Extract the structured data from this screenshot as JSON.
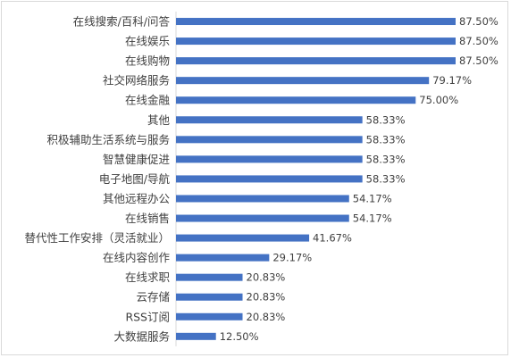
{
  "chart_data": {
    "type": "bar",
    "orientation": "horizontal",
    "categories": [
      "在线搜索/百科/问答",
      "在线娱乐",
      "在线购物",
      "社交网络服务",
      "在线金融",
      "其他",
      "积极辅助生活系统与服务",
      "智慧健康促进",
      "电子地图/导航",
      "其他远程办公",
      "在线销售",
      "替代性工作安排（灵活就业）",
      "在线内容创作",
      "在线求职",
      "云存储",
      "RSS订阅",
      "大数据服务"
    ],
    "values": [
      87.5,
      87.5,
      87.5,
      79.17,
      75.0,
      58.33,
      58.33,
      58.33,
      58.33,
      54.17,
      54.17,
      41.67,
      29.17,
      20.83,
      20.83,
      20.83,
      12.5
    ],
    "value_labels": [
      "87.50%",
      "87.50%",
      "87.50%",
      "79.17%",
      "75.00%",
      "58.33%",
      "58.33%",
      "58.33%",
      "58.33%",
      "54.17%",
      "54.17%",
      "41.67%",
      "29.17%",
      "20.83%",
      "20.83%",
      "20.83%",
      "12.50%"
    ],
    "bar_color": "#4472C4",
    "axis_color": "#d9d9d9",
    "xlim": [
      0,
      100
    ],
    "grid": false,
    "legend": "none"
  }
}
